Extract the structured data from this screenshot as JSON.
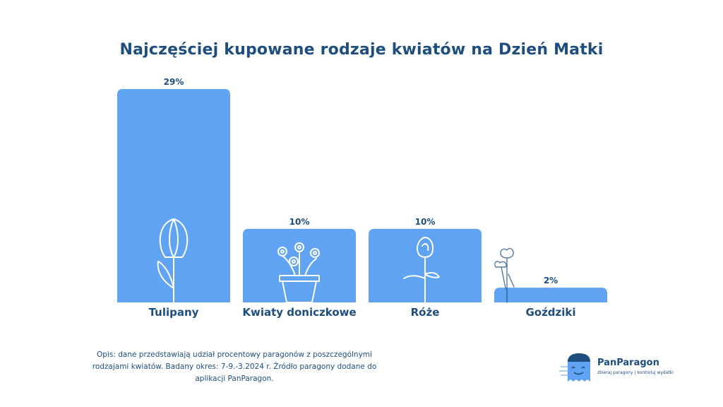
{
  "chart_data": {
    "type": "bar",
    "title": "Najczęściej kupowane rodzaje kwiatów na Dzień Matki",
    "categories": [
      "Tulipany",
      "Kwiaty doniczkowe",
      "Róże",
      "Goździki"
    ],
    "values": [
      29,
      10,
      10,
      2
    ],
    "value_labels": [
      "29%",
      "10%",
      "10%",
      "2%"
    ],
    "icons": [
      "tulip-icon",
      "potted-flowers-icon",
      "rose-icon",
      "carnation-icon"
    ],
    "ylim": [
      0,
      29
    ],
    "grid": false,
    "legend": "none",
    "bar_color": "#5fa3f2",
    "text_color": "#1d4e7e"
  },
  "footnote": "Opis: dane przedstawiają udział procentowy paragonów z poszczególnymi rodzajami kwiatów. Badany okres: 7-9.-3.2024 r. Źródło paragony dodane do aplikacji PanParagon.",
  "logo": {
    "name": "PanParagon",
    "tagline": "zbieraj paragony | kontroluj wydatki"
  }
}
